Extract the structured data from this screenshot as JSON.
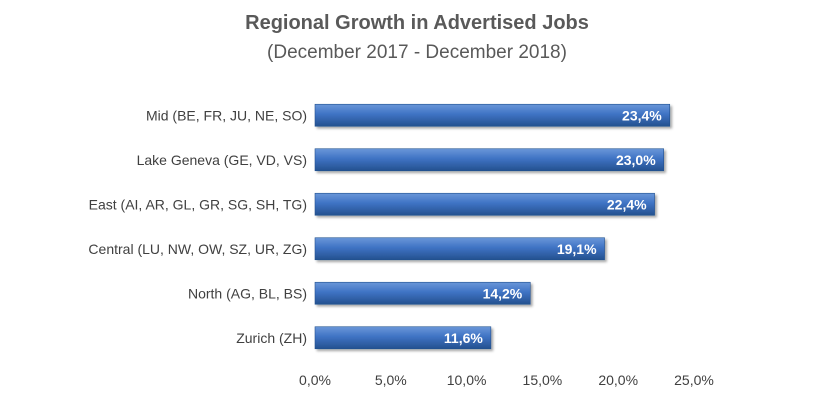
{
  "title": "Regional Growth in Advertised Jobs",
  "subtitle": "(December 2017 - December 2018)",
  "colors": {
    "bar_light": "#6a97d9",
    "bar_mid": "#3f73c4",
    "bar_dark": "#24518f",
    "axis": "#bfbfbf",
    "text": "#404040"
  },
  "chart_data": {
    "type": "bar",
    "orientation": "horizontal",
    "categories": [
      "Mid (BE, FR, JU, NE, SO)",
      "Lake Geneva (GE, VD, VS)",
      "East (AI, AR, GL, GR, SG, SH, TG)",
      "Central (LU, NW, OW, SZ, UR, ZG)",
      "North (AG, BL, BS)",
      "Zurich (ZH)"
    ],
    "values": [
      23.4,
      23.0,
      22.4,
      19.1,
      14.2,
      11.6
    ],
    "data_labels": [
      "23,4%",
      "23,0%",
      "22,4%",
      "19,1%",
      "14,2%",
      "11,6%"
    ],
    "xlim": [
      0,
      25
    ],
    "x_ticks": [
      0,
      5,
      10,
      15,
      20,
      25
    ],
    "x_tick_labels": [
      "0,0%",
      "5,0%",
      "10,0%",
      "15,0%",
      "20,0%",
      "25,0%"
    ],
    "title": "Regional Growth in Advertised Jobs",
    "subtitle": "(December 2017 - December 2018)",
    "xlabel": "",
    "ylabel": "",
    "grid": false,
    "legend": "none"
  }
}
